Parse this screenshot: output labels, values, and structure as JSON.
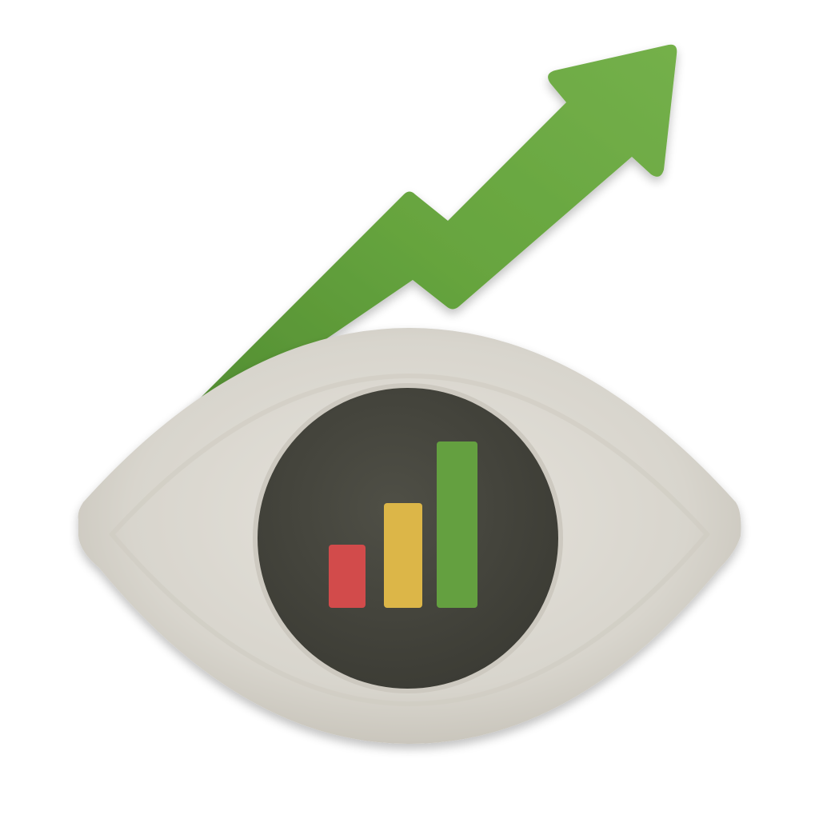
{
  "illustration": {
    "icon": "eye-with-bar-chart-and-rising-arrow-icon",
    "colors": {
      "background": "#ffffff",
      "arrow_green": "#6aa444",
      "eye_white": "#dcd9d2",
      "iris_dark": "#45453d",
      "bar_red": "#d24b4b",
      "bar_yellow": "#dcb648",
      "bar_green": "#64a040"
    },
    "bars": [
      {
        "name": "red",
        "level": 0.38
      },
      {
        "name": "yellow",
        "level": 0.63
      },
      {
        "name": "green",
        "level": 1.0
      }
    ]
  }
}
